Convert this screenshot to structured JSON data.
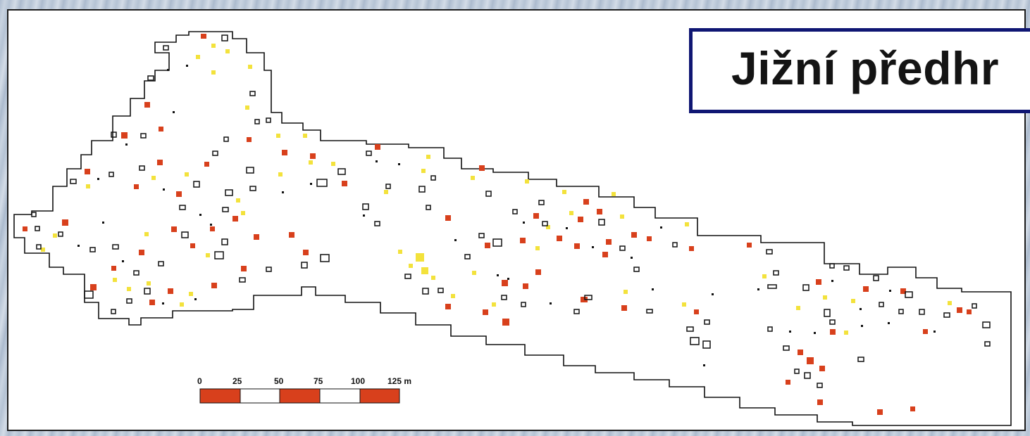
{
  "title": "Jižní předhr",
  "scale_bar": {
    "ticks": [
      "0",
      "25",
      "50",
      "75",
      "100"
    ],
    "last_tick": "125",
    "unit": "m"
  },
  "colors": {
    "red_feature": "#d8401c",
    "yellow_feature": "#f3e23c",
    "outline": "#111111",
    "title_border": "#0f1673"
  }
}
